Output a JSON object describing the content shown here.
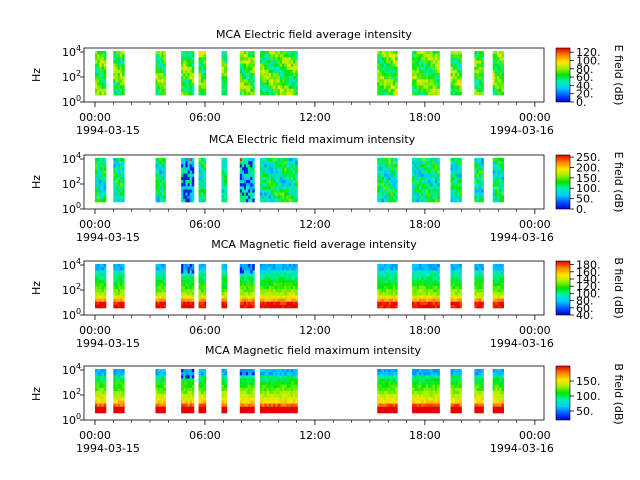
{
  "chart_data": [
    {
      "type": "heatmap",
      "title": "MCA  Electric field average intensity",
      "ylabel": "Hz",
      "colorbar_label": "E field (dB)",
      "colorbar_range": [
        0,
        130
      ],
      "colorbar_ticks": [
        0,
        20,
        40,
        60,
        80,
        100,
        120
      ],
      "colorbar_tick_labels": [
        "0.",
        "20.",
        "40.",
        "60.",
        "80.",
        "100.",
        "120."
      ],
      "colormap": "rainbow",
      "y_ticks": [
        "10^0",
        "10^2",
        "10^4"
      ],
      "segments": [
        [
          0.0,
          0.6
        ],
        [
          1.0,
          1.6
        ],
        [
          3.3,
          3.85
        ],
        [
          4.7,
          5.4
        ],
        [
          5.65,
          6.05
        ],
        [
          6.9,
          7.2
        ],
        [
          7.9,
          8.7
        ],
        [
          9.0,
          11.05
        ],
        [
          15.4,
          16.5
        ],
        [
          17.3,
          18.8
        ],
        [
          19.4,
          20.0
        ],
        [
          20.7,
          21.2
        ],
        [
          21.7,
          22.3
        ]
      ],
      "signal": "average-e"
    },
    {
      "type": "heatmap",
      "title": "MCA  Electric field maximum intensity",
      "ylabel": "Hz",
      "colorbar_label": "E field (dB)",
      "colorbar_range": [
        0,
        260
      ],
      "colorbar_ticks": [
        0,
        50,
        100,
        150,
        200,
        250
      ],
      "colorbar_tick_labels": [
        "0.",
        "50.",
        "100.",
        "150.",
        "200.",
        "250."
      ],
      "colormap": "rainbow",
      "y_ticks": [
        "10^0",
        "10^2",
        "10^4"
      ],
      "segments": [
        [
          0.0,
          0.6
        ],
        [
          1.0,
          1.6
        ],
        [
          3.3,
          3.85
        ],
        [
          4.7,
          5.4
        ],
        [
          5.65,
          6.05
        ],
        [
          6.9,
          7.2
        ],
        [
          7.9,
          8.7
        ],
        [
          9.0,
          11.05
        ],
        [
          15.4,
          16.5
        ],
        [
          17.3,
          18.8
        ],
        [
          19.4,
          20.0
        ],
        [
          20.7,
          21.2
        ],
        [
          21.7,
          22.3
        ]
      ],
      "signal": "maximum-e"
    },
    {
      "type": "heatmap",
      "title": "MCA  Magnetic field average intensity",
      "ylabel": "Hz",
      "colorbar_label": "B field (dB)",
      "colorbar_range": [
        40,
        190
      ],
      "colorbar_ticks": [
        40,
        60,
        80,
        100,
        120,
        140,
        160,
        180
      ],
      "colorbar_tick_labels": [
        "40.",
        "60.",
        "80.",
        "100.",
        "120.",
        "140.",
        "160.",
        "180."
      ],
      "colormap": "rainbow",
      "y_ticks": [
        "10^0",
        "10^2",
        "10^4"
      ],
      "segments": [
        [
          0.0,
          0.6
        ],
        [
          1.0,
          1.6
        ],
        [
          3.3,
          3.85
        ],
        [
          4.7,
          5.4
        ],
        [
          5.65,
          6.05
        ],
        [
          6.9,
          7.2
        ],
        [
          7.9,
          8.7
        ],
        [
          9.0,
          11.05
        ],
        [
          15.4,
          16.5
        ],
        [
          17.3,
          18.8
        ],
        [
          19.4,
          20.0
        ],
        [
          20.7,
          21.2
        ],
        [
          21.7,
          22.3
        ]
      ],
      "signal": "average-b"
    },
    {
      "type": "heatmap",
      "title": "MCA  Magnetic field maximum intensity",
      "ylabel": "Hz",
      "colorbar_label": "B field (dB)",
      "colorbar_range": [
        20,
        200
      ],
      "colorbar_ticks": [
        50,
        100,
        150
      ],
      "colorbar_tick_labels": [
        "50.",
        "100.",
        "150."
      ],
      "colormap": "rainbow",
      "y_ticks": [
        "10^0",
        "10^2",
        "10^4"
      ],
      "segments": [
        [
          0.0,
          0.6
        ],
        [
          1.0,
          1.6
        ],
        [
          3.3,
          3.85
        ],
        [
          4.7,
          5.4
        ],
        [
          5.65,
          6.05
        ],
        [
          6.9,
          7.2
        ],
        [
          7.9,
          8.7
        ],
        [
          9.0,
          11.05
        ],
        [
          15.4,
          16.5
        ],
        [
          17.3,
          18.8
        ],
        [
          19.4,
          20.0
        ],
        [
          20.7,
          21.2
        ],
        [
          21.7,
          22.3
        ]
      ],
      "signal": "maximum-b"
    }
  ],
  "x_axis": {
    "range_hours": [
      -0.6,
      24.5
    ],
    "tick_hours": [
      0,
      6,
      12,
      18,
      24
    ],
    "tick_labels": [
      "00:00",
      "06:00",
      "12:00",
      "18:00",
      "00:00"
    ],
    "minor_tick_hours": [
      1,
      2,
      3,
      4,
      5,
      7,
      8,
      9,
      10,
      11,
      13,
      14,
      15,
      16,
      17,
      19,
      20,
      21,
      22,
      23
    ],
    "start_date": "1994-03-15",
    "end_date": "1994-03-16"
  }
}
